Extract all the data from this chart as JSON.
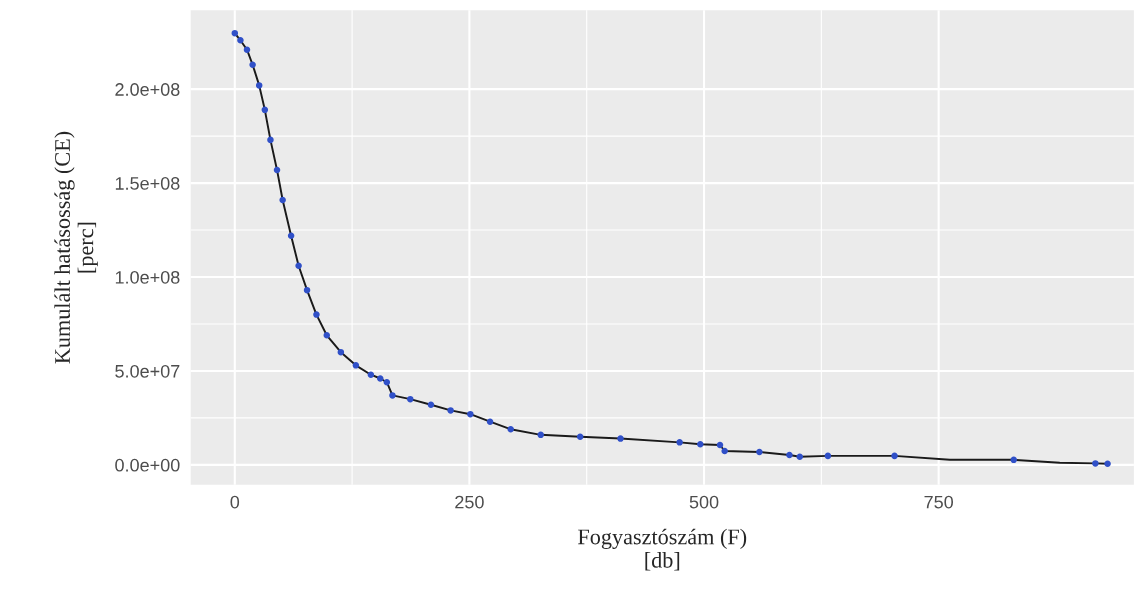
{
  "chart_data": {
    "type": "line",
    "xlabel": "Fogyasztószám (F)\n[db]",
    "ylabel": "Kumulált hatásosság (CE)\n[perc]",
    "xlim": [
      -47,
      958
    ],
    "ylim": [
      -10600000,
      242000000
    ],
    "xticks": [
      0,
      250,
      500,
      750
    ],
    "yticks": [
      {
        "value": 0,
        "label": "0.0e+00"
      },
      {
        "value": 50000000,
        "label": "5.0e+07"
      },
      {
        "value": 100000000,
        "label": "1.0e+08"
      },
      {
        "value": 150000000,
        "label": "1.5e+08"
      },
      {
        "value": 200000000,
        "label": "2.0e+08"
      }
    ],
    "grid": true,
    "series": [
      {
        "marker": "none",
        "color": "#1a1a1a",
        "x": [
          0,
          6,
          13,
          19,
          26,
          32,
          38,
          45,
          51,
          60,
          68,
          77,
          87,
          98,
          113,
          129,
          145,
          155,
          162,
          168,
          187,
          209,
          230,
          251,
          272,
          294,
          326,
          368,
          411,
          474,
          496,
          517,
          522,
          559,
          591,
          602,
          632,
          703,
          762,
          830,
          879,
          917,
          930
        ],
        "values": [
          229800000,
          226000000,
          221000000,
          213000000,
          202000000,
          189000000,
          173000000,
          157000000,
          141000000,
          122000000,
          106000000,
          93000000,
          80000000,
          69000000,
          60000000,
          53000000,
          48000000,
          46000000,
          44000000,
          37000000,
          35000000,
          32000000,
          29000000,
          27000000,
          23000000,
          19000000,
          16000000,
          15000000,
          14000000,
          12000000,
          11000000,
          10600000,
          7400000,
          6900000,
          5300000,
          4300000,
          4800000,
          4800000,
          2700000,
          2700000,
          1100000,
          800000,
          600000
        ]
      },
      {
        "type": "scatter",
        "marker": "circle",
        "color": "#3050c8",
        "x": [
          0,
          6,
          13,
          19,
          26,
          32,
          38,
          45,
          51,
          60,
          68,
          77,
          87,
          98,
          113,
          129,
          145,
          155,
          162,
          168,
          187,
          209,
          230,
          251,
          272,
          294,
          326,
          368,
          411,
          474,
          496,
          517,
          522,
          559,
          591,
          602,
          632,
          703,
          830,
          917,
          930
        ],
        "values": [
          229800000,
          226000000,
          221000000,
          213000000,
          202000000,
          189000000,
          173000000,
          157000000,
          141000000,
          122000000,
          106000000,
          93000000,
          80000000,
          69000000,
          60000000,
          53000000,
          48000000,
          46000000,
          44000000,
          37000000,
          35000000,
          32000000,
          29000000,
          27000000,
          23000000,
          19000000,
          16000000,
          15000000,
          14000000,
          12000000,
          11000000,
          10600000,
          7400000,
          6900000,
          5300000,
          4300000,
          4800000,
          4800000,
          2700000,
          800000,
          600000
        ]
      }
    ]
  }
}
